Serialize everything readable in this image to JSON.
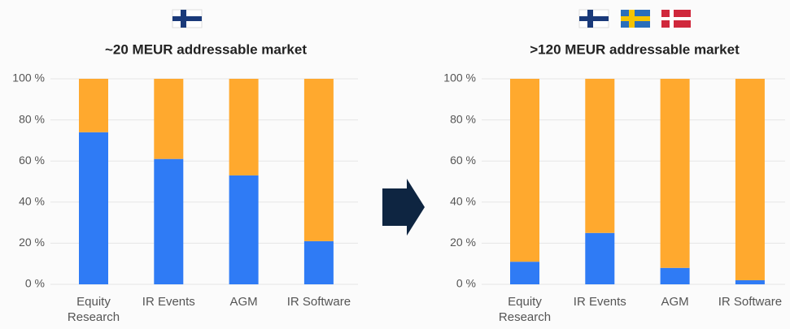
{
  "chart_data": [
    {
      "type": "stacked_bar",
      "title": "~20 MEUR addressable market",
      "categories": [
        "Equity Research",
        "IR Events",
        "AGM",
        "IR Software"
      ],
      "series": [
        {
          "color": "#2f7bf5",
          "values": [
            74,
            61,
            53,
            21
          ]
        },
        {
          "color": "#ffa92e",
          "values": [
            26,
            39,
            47,
            79
          ]
        }
      ],
      "ylim": [
        0,
        100
      ],
      "yticks": [
        {
          "value": 0,
          "label": "0 %"
        },
        {
          "value": 20,
          "label": "20 %"
        },
        {
          "value": 40,
          "label": "40 %"
        },
        {
          "value": 60,
          "label": "60 %"
        },
        {
          "value": 80,
          "label": "80 %"
        },
        {
          "value": 100,
          "label": "100 %"
        }
      ],
      "grid": true
    },
    {
      "type": "stacked_bar",
      "title": ">120 MEUR addressable market",
      "categories": [
        "Equity Research",
        "IR Events",
        "AGM",
        "IR Software"
      ],
      "series": [
        {
          "color": "#2f7bf5",
          "values": [
            11,
            25,
            8,
            2
          ]
        },
        {
          "color": "#ffa92e",
          "values": [
            89,
            75,
            92,
            98
          ]
        }
      ],
      "ylim": [
        0,
        100
      ],
      "yticks": [
        {
          "value": 0,
          "label": "0 %"
        },
        {
          "value": 20,
          "label": "20 %"
        },
        {
          "value": 40,
          "label": "40 %"
        },
        {
          "value": 60,
          "label": "60 %"
        },
        {
          "value": 80,
          "label": "80 %"
        },
        {
          "value": 100,
          "label": "100 %"
        }
      ],
      "grid": true
    }
  ]
}
